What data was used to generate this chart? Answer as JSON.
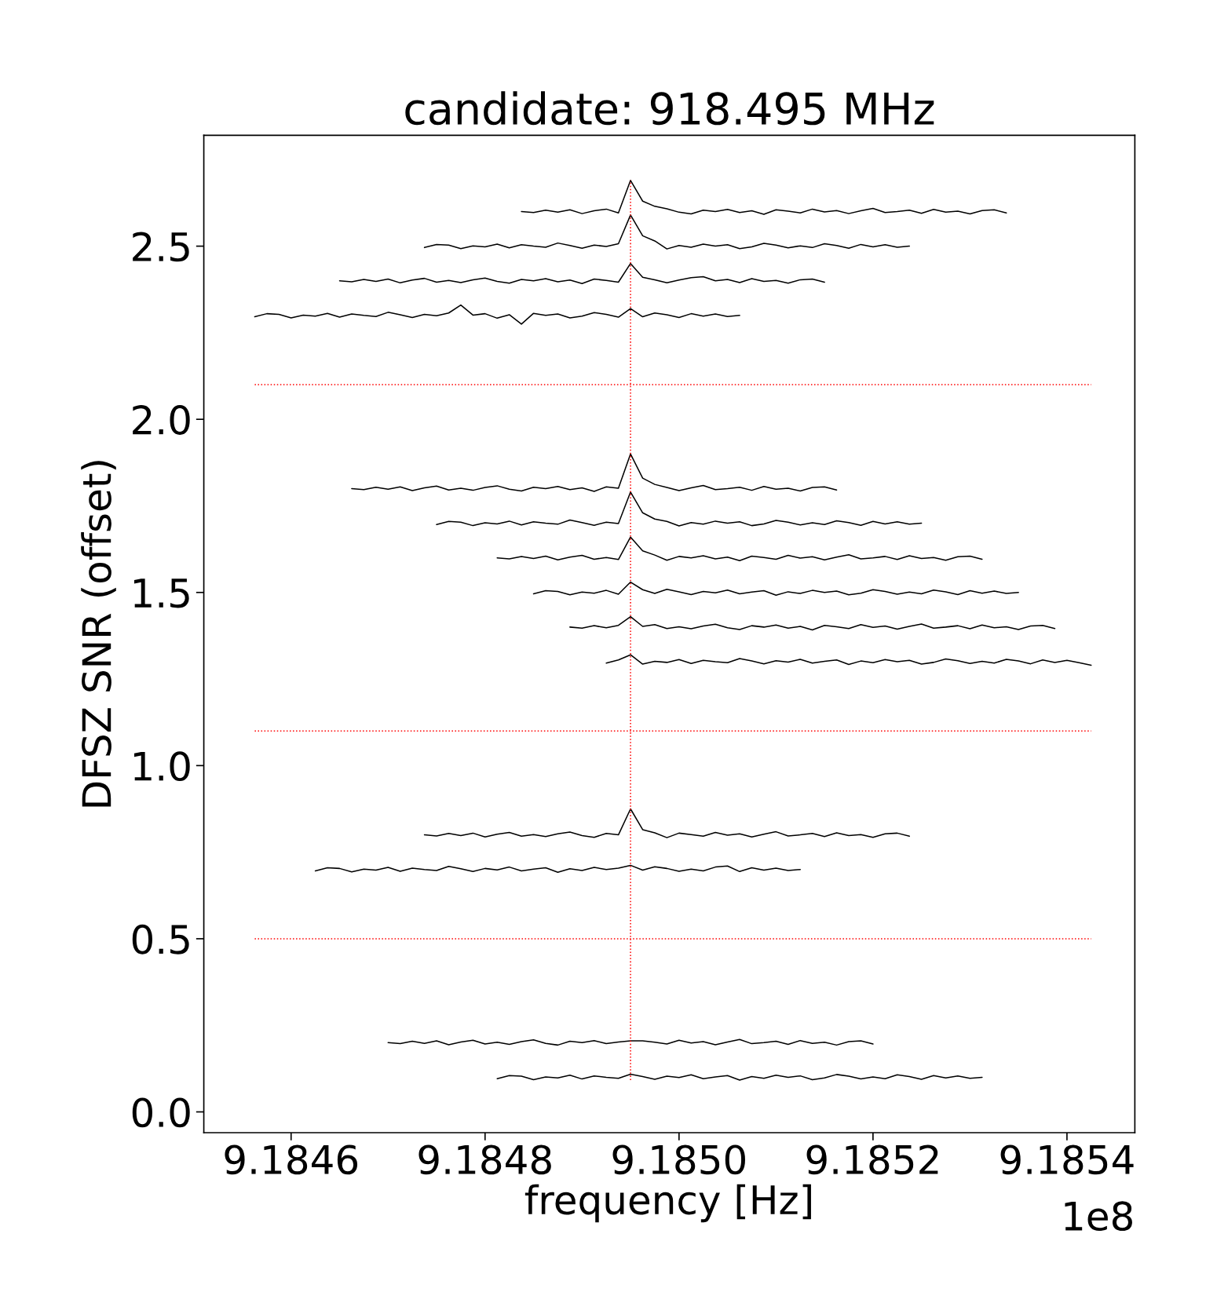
{
  "chart_data": {
    "type": "line",
    "title": "candidate: 918.495 MHz",
    "xlabel": "frequency [Hz]",
    "ylabel": "DFSZ SNR (offset)",
    "annotations": [
      "1e8"
    ],
    "xlim": [
      9.18451,
      9.18547
    ],
    "xticks": [
      9.1846,
      9.1848,
      {
        "value": 9.185,
        "label": "9.1850"
      },
      9.1852,
      9.1854
    ],
    "ylim": [
      -0.06,
      2.82
    ],
    "yticks": [
      {
        "value": 0,
        "label": "0.0"
      },
      0.5,
      {
        "value": 1,
        "label": "1.0"
      },
      1.5,
      {
        "value": 2,
        "label": "2.0"
      },
      2.5
    ],
    "x": [
      9.1845625,
      9.184575,
      9.1845875,
      9.1846,
      9.1846125,
      9.184625,
      9.1846375,
      9.18465,
      9.1846625,
      9.184675,
      9.1846875,
      9.1847,
      9.1847125,
      9.184725,
      9.1847375,
      9.18475,
      9.1847625,
      9.184775,
      9.1847875,
      9.1848,
      9.1848125,
      9.184825,
      9.1848375,
      9.18485,
      9.1848625,
      9.184875,
      9.1848875,
      9.1849,
      9.1849125,
      9.184925,
      9.1849375,
      9.18495,
      9.1849625,
      9.184975,
      9.1849875,
      9.185,
      9.1850125,
      9.185025,
      9.1850375,
      9.18505,
      9.1850625,
      9.185075,
      9.1850875,
      9.1851,
      9.1851125,
      9.185125,
      9.1851375,
      9.18515,
      9.1851625,
      9.185175,
      9.1851875,
      9.1852,
      9.1852125,
      9.185225,
      9.1852375,
      9.18525,
      9.1852625,
      9.185275,
      9.1852875,
      9.1853,
      9.1853125,
      9.185325,
      9.1853375,
      9.18535,
      9.1853625,
      9.185375,
      9.1853875,
      9.1854,
      9.1854125,
      9.185425
    ],
    "series": [
      {
        "color": "#000000",
        "values": [
          null,
          null,
          null,
          null,
          null,
          null,
          null,
          null,
          null,
          null,
          null,
          null,
          null,
          null,
          null,
          null,
          null,
          null,
          null,
          null,
          null,
          null,
          2.6,
          2.597,
          2.604,
          2.598,
          2.605,
          2.594,
          2.602,
          2.607,
          2.596,
          2.69,
          2.63,
          2.615,
          2.608,
          2.598,
          2.593,
          2.604,
          2.6,
          2.606,
          2.597,
          2.602,
          2.592,
          2.605,
          2.601,
          2.596,
          2.607,
          2.599,
          2.603,
          2.594,
          2.602,
          2.609,
          2.597,
          2.6,
          2.604,
          2.595,
          2.606,
          2.598,
          2.601,
          2.593,
          2.603,
          2.605,
          2.596,
          null,
          null,
          null,
          null,
          null,
          null,
          null
        ]
      },
      {
        "color": "#000000",
        "values": [
          null,
          null,
          null,
          null,
          null,
          null,
          null,
          null,
          null,
          null,
          null,
          null,
          null,
          null,
          2.496,
          2.505,
          2.503,
          2.493,
          2.501,
          2.498,
          2.506,
          2.495,
          2.504,
          2.5,
          2.497,
          2.509,
          2.502,
          2.494,
          2.503,
          2.499,
          2.507,
          2.59,
          2.53,
          2.515,
          2.492,
          2.502,
          2.497,
          2.506,
          2.5,
          2.504,
          2.493,
          2.498,
          2.508,
          2.503,
          2.495,
          2.501,
          2.496,
          2.507,
          2.502,
          2.494,
          2.505,
          2.498,
          2.504,
          2.497,
          2.5,
          null,
          null,
          null,
          null,
          null,
          null,
          null,
          null,
          null,
          null,
          null,
          null,
          null,
          null,
          null
        ]
      },
      {
        "color": "#000000",
        "values": [
          null,
          null,
          null,
          null,
          null,
          null,
          null,
          2.4,
          2.397,
          2.404,
          2.398,
          2.405,
          2.394,
          2.402,
          2.407,
          2.396,
          2.401,
          2.395,
          2.403,
          2.408,
          2.398,
          2.393,
          2.404,
          2.4,
          2.406,
          2.397,
          2.402,
          2.392,
          2.405,
          2.401,
          2.396,
          2.45,
          2.41,
          2.403,
          2.394,
          2.402,
          2.409,
          2.412,
          2.4,
          2.404,
          2.395,
          2.406,
          2.398,
          2.401,
          2.393,
          2.403,
          2.405,
          2.396,
          null,
          null,
          null,
          null,
          null,
          null,
          null,
          null,
          null,
          null,
          null,
          null,
          null,
          null,
          null,
          null,
          null,
          null,
          null,
          null,
          null,
          null
        ]
      },
      {
        "color": "#000000",
        "values": [
          2.296,
          2.305,
          2.303,
          2.293,
          2.301,
          2.298,
          2.306,
          2.295,
          2.304,
          2.3,
          2.297,
          2.309,
          2.302,
          2.294,
          2.303,
          2.299,
          2.307,
          2.33,
          2.301,
          2.305,
          2.292,
          2.302,
          2.275,
          2.306,
          2.3,
          2.304,
          2.293,
          2.298,
          2.308,
          2.303,
          2.295,
          2.32,
          2.296,
          2.307,
          2.302,
          2.294,
          2.305,
          2.298,
          2.304,
          2.297,
          2.3,
          null,
          null,
          null,
          null,
          null,
          null,
          null,
          null,
          null,
          null,
          null,
          null,
          null,
          null,
          null,
          null,
          null,
          null,
          null,
          null,
          null,
          null,
          null,
          null,
          null,
          null,
          null,
          null,
          null
        ]
      },
      {
        "color": "#000000",
        "values": [
          null,
          null,
          null,
          null,
          null,
          null,
          null,
          null,
          1.8,
          1.797,
          1.804,
          1.798,
          1.805,
          1.794,
          1.802,
          1.807,
          1.796,
          1.801,
          1.795,
          1.803,
          1.808,
          1.798,
          1.793,
          1.804,
          1.8,
          1.806,
          1.797,
          1.802,
          1.792,
          1.805,
          1.801,
          1.9,
          1.83,
          1.812,
          1.803,
          1.794,
          1.802,
          1.809,
          1.797,
          1.8,
          1.804,
          1.795,
          1.806,
          1.798,
          1.801,
          1.793,
          1.803,
          1.805,
          1.796,
          null,
          null,
          null,
          null,
          null,
          null,
          null,
          null,
          null,
          null,
          null,
          null,
          null,
          null,
          null,
          null,
          null,
          null,
          null,
          null,
          null
        ]
      },
      {
        "color": "#000000",
        "values": [
          null,
          null,
          null,
          null,
          null,
          null,
          null,
          null,
          null,
          null,
          null,
          null,
          null,
          null,
          null,
          1.696,
          1.705,
          1.703,
          1.693,
          1.701,
          1.698,
          1.706,
          1.695,
          1.704,
          1.7,
          1.697,
          1.709,
          1.702,
          1.694,
          1.703,
          1.699,
          1.79,
          1.73,
          1.712,
          1.705,
          1.692,
          1.702,
          1.697,
          1.706,
          1.7,
          1.704,
          1.693,
          1.698,
          1.708,
          1.703,
          1.695,
          1.701,
          1.696,
          1.707,
          1.702,
          1.694,
          1.705,
          1.698,
          1.704,
          1.697,
          1.7,
          null,
          null,
          null,
          null,
          null,
          null,
          null,
          null,
          null,
          null,
          null,
          null,
          null,
          null
        ]
      },
      {
        "color": "#000000",
        "values": [
          null,
          null,
          null,
          null,
          null,
          null,
          null,
          null,
          null,
          null,
          null,
          null,
          null,
          null,
          null,
          null,
          null,
          null,
          null,
          null,
          1.6,
          1.597,
          1.604,
          1.598,
          1.605,
          1.594,
          1.602,
          1.607,
          1.596,
          1.601,
          1.595,
          1.66,
          1.62,
          1.608,
          1.593,
          1.604,
          1.6,
          1.606,
          1.597,
          1.602,
          1.592,
          1.605,
          1.601,
          1.596,
          1.607,
          1.599,
          1.603,
          1.594,
          1.602,
          1.609,
          1.597,
          1.6,
          1.604,
          1.595,
          1.606,
          1.598,
          1.601,
          1.593,
          1.603,
          1.605,
          1.596,
          null,
          null,
          null,
          null,
          null,
          null,
          null,
          null,
          null
        ]
      },
      {
        "color": "#000000",
        "values": [
          null,
          null,
          null,
          null,
          null,
          null,
          null,
          null,
          null,
          null,
          null,
          null,
          null,
          null,
          null,
          null,
          null,
          null,
          null,
          null,
          null,
          null,
          null,
          1.496,
          1.505,
          1.503,
          1.493,
          1.501,
          1.498,
          1.506,
          1.495,
          1.53,
          1.508,
          1.497,
          1.509,
          1.502,
          1.494,
          1.503,
          1.499,
          1.507,
          1.496,
          1.501,
          1.505,
          1.492,
          1.502,
          1.497,
          1.506,
          1.5,
          1.504,
          1.493,
          1.498,
          1.508,
          1.503,
          1.495,
          1.501,
          1.496,
          1.507,
          1.502,
          1.494,
          1.505,
          1.498,
          1.504,
          1.497,
          1.5,
          null,
          null,
          null,
          null,
          null,
          null
        ]
      },
      {
        "color": "#000000",
        "values": [
          null,
          null,
          null,
          null,
          null,
          null,
          null,
          null,
          null,
          null,
          null,
          null,
          null,
          null,
          null,
          null,
          null,
          null,
          null,
          null,
          null,
          null,
          null,
          null,
          null,
          null,
          1.4,
          1.397,
          1.404,
          1.398,
          1.405,
          1.43,
          1.402,
          1.407,
          1.396,
          1.401,
          1.395,
          1.403,
          1.408,
          1.398,
          1.393,
          1.404,
          1.4,
          1.406,
          1.397,
          1.402,
          1.392,
          1.405,
          1.401,
          1.396,
          1.407,
          1.399,
          1.403,
          1.394,
          1.402,
          1.409,
          1.397,
          1.4,
          1.404,
          1.395,
          1.406,
          1.398,
          1.401,
          1.393,
          1.403,
          1.405,
          1.396,
          null,
          null,
          null
        ]
      },
      {
        "color": "#000000",
        "values": [
          null,
          null,
          null,
          null,
          null,
          null,
          null,
          null,
          null,
          null,
          null,
          null,
          null,
          null,
          null,
          null,
          null,
          null,
          null,
          null,
          null,
          null,
          null,
          null,
          null,
          null,
          null,
          null,
          null,
          1.296,
          1.305,
          1.32,
          1.293,
          1.301,
          1.298,
          1.306,
          1.295,
          1.304,
          1.3,
          1.297,
          1.309,
          1.302,
          1.294,
          1.303,
          1.299,
          1.307,
          1.296,
          1.301,
          1.305,
          1.292,
          1.302,
          1.297,
          1.306,
          1.3,
          1.304,
          1.293,
          1.298,
          1.308,
          1.303,
          1.295,
          1.301,
          1.296,
          1.307,
          1.302,
          1.294,
          1.305,
          1.298,
          1.304,
          1.297,
          1.29
        ]
      },
      {
        "color": "#000000",
        "values": [
          null,
          null,
          null,
          null,
          null,
          null,
          null,
          null,
          null,
          null,
          null,
          null,
          null,
          null,
          0.8,
          0.797,
          0.804,
          0.798,
          0.805,
          0.794,
          0.802,
          0.807,
          0.796,
          0.801,
          0.795,
          0.803,
          0.808,
          0.798,
          0.793,
          0.804,
          0.8,
          0.875,
          0.815,
          0.806,
          0.792,
          0.805,
          0.801,
          0.796,
          0.807,
          0.799,
          0.803,
          0.794,
          0.802,
          0.809,
          0.797,
          0.8,
          0.804,
          0.795,
          0.806,
          0.798,
          0.801,
          0.793,
          0.803,
          0.805,
          0.796,
          null,
          null,
          null,
          null,
          null,
          null,
          null,
          null,
          null,
          null,
          null,
          null,
          null,
          null,
          null
        ]
      },
      {
        "color": "#000000",
        "values": [
          null,
          null,
          null,
          null,
          null,
          0.696,
          0.705,
          0.703,
          0.693,
          0.701,
          0.698,
          0.706,
          0.695,
          0.704,
          0.7,
          0.697,
          0.709,
          0.702,
          0.694,
          0.703,
          0.699,
          0.707,
          0.696,
          0.701,
          0.705,
          0.692,
          0.702,
          0.697,
          0.706,
          0.7,
          0.704,
          0.712,
          0.698,
          0.708,
          0.703,
          0.695,
          0.701,
          0.696,
          0.707,
          0.71,
          0.694,
          0.705,
          0.698,
          0.704,
          0.697,
          0.7,
          null,
          null,
          null,
          null,
          null,
          null,
          null,
          null,
          null,
          null,
          null,
          null,
          null,
          null,
          null,
          null,
          null,
          null,
          null,
          null,
          null,
          null,
          null,
          null
        ]
      },
      {
        "color": "#000000",
        "values": [
          null,
          null,
          null,
          null,
          null,
          null,
          null,
          null,
          null,
          null,
          null,
          0.2,
          0.197,
          0.204,
          0.198,
          0.205,
          0.194,
          0.202,
          0.207,
          0.196,
          0.201,
          0.195,
          0.203,
          0.208,
          0.198,
          0.193,
          0.204,
          0.2,
          0.206,
          0.197,
          0.202,
          0.205,
          0.205,
          0.201,
          0.196,
          0.207,
          0.199,
          0.203,
          0.194,
          0.202,
          0.209,
          0.197,
          0.2,
          0.204,
          0.195,
          0.206,
          0.198,
          0.201,
          0.193,
          0.203,
          0.205,
          0.196,
          null,
          null,
          null,
          null,
          null,
          null,
          null,
          null,
          null,
          null,
          null,
          null,
          null,
          null,
          null,
          null,
          null,
          null
        ]
      },
      {
        "color": "#000000",
        "values": [
          null,
          null,
          null,
          null,
          null,
          null,
          null,
          null,
          null,
          null,
          null,
          null,
          null,
          null,
          null,
          null,
          null,
          null,
          null,
          null,
          0.096,
          0.105,
          0.103,
          0.093,
          0.101,
          0.098,
          0.106,
          0.095,
          0.104,
          0.1,
          0.097,
          0.109,
          0.102,
          0.094,
          0.103,
          0.099,
          0.107,
          0.096,
          0.101,
          0.105,
          0.092,
          0.102,
          0.097,
          0.106,
          0.1,
          0.104,
          0.093,
          0.098,
          0.108,
          0.103,
          0.095,
          0.101,
          0.096,
          0.107,
          0.102,
          0.094,
          0.105,
          0.098,
          0.104,
          0.097,
          0.1,
          null,
          null,
          null,
          null,
          null,
          null,
          null,
          null,
          null
        ]
      }
    ],
    "ref_lines": [
      {
        "axis": "y",
        "value": 2.1,
        "color": "#ff0000",
        "line_style": "dotted"
      },
      {
        "axis": "y",
        "value": 1.1,
        "color": "#ff0000",
        "line_style": "dotted"
      },
      {
        "axis": "y",
        "value": 0.5,
        "color": "#ff0000",
        "line_style": "dotted"
      },
      {
        "axis": "x",
        "value": 9.18495,
        "color": "#ff0000",
        "line_style": "dotted"
      }
    ]
  }
}
